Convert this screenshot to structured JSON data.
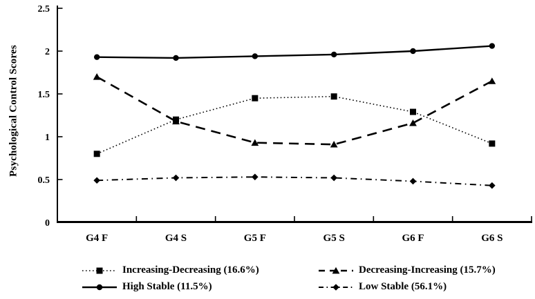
{
  "chart_data": {
    "type": "line",
    "title": "",
    "xlabel": "",
    "ylabel": "Psychological Control Scores",
    "ylim": [
      0,
      2.5
    ],
    "yticks": {
      "values": [
        0,
        0.5,
        1,
        1.5,
        2,
        2.5
      ],
      "labels": [
        "0",
        "0.5",
        "1",
        "1.5",
        "2",
        "2.5"
      ]
    },
    "grid": false,
    "legend_position": "bottom",
    "background_color": "#ffffff",
    "ink_color": "#000000",
    "categories": [
      "G4 F",
      "G4 S",
      "G5 F",
      "G5 S",
      "G6 F",
      "G6 S"
    ],
    "series": [
      {
        "name": "Increasing-Decreasing (16.6%)",
        "marker": "square",
        "line_style": "dotted",
        "color": "#000000",
        "values": [
          0.8,
          1.2,
          1.45,
          1.47,
          1.29,
          0.92
        ]
      },
      {
        "name": "Decreasing-Increasing (15.7%)",
        "marker": "triangle",
        "line_style": "dashed",
        "color": "#000000",
        "values": [
          1.7,
          1.18,
          0.93,
          0.91,
          1.16,
          1.65
        ]
      },
      {
        "name": "High Stable (11.5%)",
        "marker": "circle",
        "line_style": "solid",
        "color": "#000000",
        "values": [
          1.93,
          1.92,
          1.94,
          1.96,
          2.0,
          2.06
        ]
      },
      {
        "name": "Low Stable (56.1%)",
        "marker": "diamond",
        "line_style": "dash-dot",
        "color": "#000000",
        "values": [
          0.49,
          0.52,
          0.53,
          0.52,
          0.48,
          0.43
        ]
      }
    ]
  }
}
